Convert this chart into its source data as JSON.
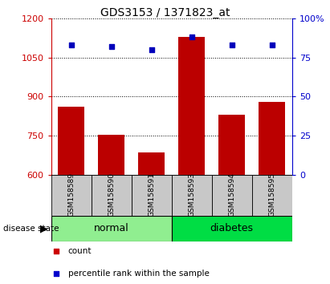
{
  "title": "GDS3153 / 1371823_at",
  "samples": [
    "GSM158589",
    "GSM158590",
    "GSM158591",
    "GSM158593",
    "GSM158594",
    "GSM158595"
  ],
  "bar_values": [
    860,
    752,
    685,
    1130,
    830,
    880
  ],
  "percentile_values": [
    83,
    82,
    80,
    88,
    83,
    83
  ],
  "groups": [
    {
      "label": "normal",
      "indices": [
        0,
        1,
        2
      ],
      "color": "#90EE90"
    },
    {
      "label": "diabetes",
      "indices": [
        3,
        4,
        5
      ],
      "color": "#00DD44"
    }
  ],
  "ylim_left": [
    600,
    1200
  ],
  "ylim_right": [
    0,
    100
  ],
  "yticks_left": [
    600,
    750,
    900,
    1050,
    1200
  ],
  "yticks_right": [
    0,
    25,
    50,
    75,
    100
  ],
  "bar_color": "#BB0000",
  "dot_color": "#0000BB",
  "title_fontsize": 10,
  "axis_color_left": "#CC0000",
  "axis_color_right": "#0000CC",
  "group_label_prefix": "disease state",
  "label_box_color": "#C8C8C8",
  "legend_items": [
    {
      "label": "count",
      "color": "#CC0000",
      "marker": "s"
    },
    {
      "label": "percentile rank within the sample",
      "color": "#0000CC",
      "marker": "s"
    }
  ]
}
